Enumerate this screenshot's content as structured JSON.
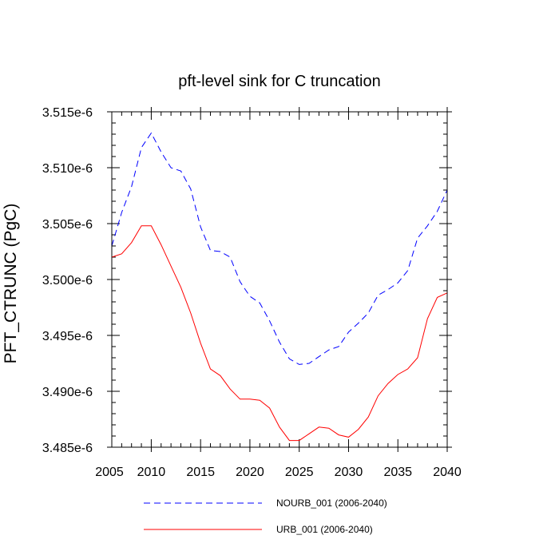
{
  "chart_data": {
    "type": "line",
    "title": "pft-level sink for C truncation",
    "xlabel": "",
    "ylabel": "PFT_CTRUNC  (PgC)",
    "xlim": [
      2006,
      2040
    ],
    "ylim": [
      3.485e-06,
      3.515e-06
    ],
    "x_ticks": [
      "2005",
      "2010",
      "2015",
      "2020",
      "2025",
      "2030",
      "2035",
      "2040"
    ],
    "y_ticks": [
      "3.485e-6",
      "3.490e-6",
      "3.495e-6",
      "3.500e-6",
      "3.505e-6",
      "3.510e-6",
      "3.515e-6"
    ],
    "legend_position": "bottom",
    "series": [
      {
        "name": "NOURB_001 (2006-2040)",
        "color": "#0000ff",
        "dash": "dashed",
        "x": [
          2006,
          2007,
          2008,
          2009,
          2010,
          2011,
          2012,
          2013,
          2014,
          2015,
          2016,
          2017,
          2018,
          2019,
          2020,
          2021,
          2022,
          2023,
          2024,
          2025,
          2026,
          2027,
          2028,
          2029,
          2030,
          2031,
          2032,
          2033,
          2034,
          2035,
          2036,
          2037,
          2038,
          2039,
          2040
        ],
        "values": [
          3.503e-06,
          3.506e-06,
          3.5083e-06,
          3.5118e-06,
          3.5131e-06,
          3.5114e-06,
          3.51e-06,
          3.5097e-06,
          3.5081e-06,
          3.5047e-06,
          3.5026e-06,
          3.5025e-06,
          3.502e-06,
          3.4998e-06,
          3.4985e-06,
          3.4979e-06,
          3.4963e-06,
          3.4944e-06,
          3.4929e-06,
          3.4924e-06,
          3.4925e-06,
          3.4931e-06,
          3.4937e-06,
          3.494e-06,
          3.4953e-06,
          3.4961e-06,
          3.497e-06,
          3.4986e-06,
          3.4991e-06,
          3.4997e-06,
          3.5008e-06,
          3.5037e-06,
          3.5048e-06,
          3.5061e-06,
          3.508e-06
        ]
      },
      {
        "name": "URB_001 (2006-2040)",
        "color": "#ff0000",
        "dash": "solid",
        "x": [
          2006,
          2007,
          2008,
          2009,
          2010,
          2011,
          2012,
          2013,
          2014,
          2015,
          2016,
          2017,
          2018,
          2019,
          2020,
          2021,
          2022,
          2023,
          2024,
          2025,
          2026,
          2027,
          2028,
          2029,
          2030,
          2031,
          2032,
          2033,
          2034,
          2035,
          2036,
          2037,
          2038,
          2039,
          2040
        ],
        "values": [
          3.502e-06,
          3.5023e-06,
          3.5033e-06,
          3.5048e-06,
          3.5048e-06,
          3.5031e-06,
          3.5012e-06,
          3.4993e-06,
          3.497e-06,
          3.4943e-06,
          3.492e-06,
          3.4914e-06,
          3.4902e-06,
          3.4893e-06,
          3.4893e-06,
          3.4892e-06,
          3.4885e-06,
          3.4868e-06,
          3.4856e-06,
          3.4856e-06,
          3.4862e-06,
          3.4868e-06,
          3.4867e-06,
          3.4861e-06,
          3.4859e-06,
          3.4866e-06,
          3.4877e-06,
          3.4896e-06,
          3.4907e-06,
          3.4915e-06,
          3.492e-06,
          3.493e-06,
          3.4965e-06,
          3.4984e-06,
          3.4988e-06
        ]
      }
    ]
  }
}
